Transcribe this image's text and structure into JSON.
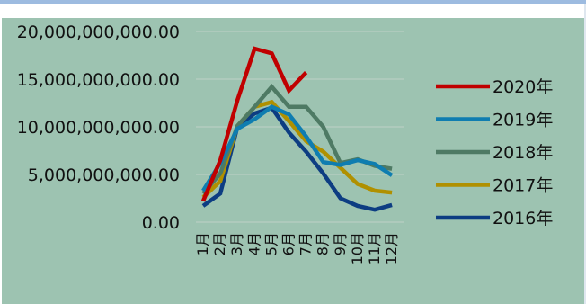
{
  "chart_data": {
    "type": "line",
    "categories": [
      "1月",
      "2月",
      "3月",
      "4月",
      "5月",
      "6月",
      "7月",
      "8月",
      "9月",
      "10月",
      "11月",
      "12月"
    ],
    "y_ticks": [
      "0.00",
      "5,000,000,000.00",
      "10,000,000,000.00",
      "15,000,000,000.00",
      "20,000,000,000.00"
    ],
    "ylim": [
      0,
      20000000000
    ],
    "grid": true,
    "legend_position": "right",
    "series": [
      {
        "name": "2020年",
        "color": "#c00000",
        "values": [
          2200000000,
          6500000000,
          12800000000,
          18200000000,
          17700000000,
          13800000000,
          15700000000,
          null,
          null,
          null,
          null,
          null
        ]
      },
      {
        "name": "2019年",
        "color": "#0f7db0",
        "values": [
          3300000000,
          6200000000,
          9800000000,
          10800000000,
          12100000000,
          11300000000,
          9000000000,
          6300000000,
          6000000000,
          6500000000,
          6100000000,
          4900000000
        ]
      },
      {
        "name": "2018年",
        "color": "#4e7a64",
        "values": [
          3000000000,
          5100000000,
          10100000000,
          12100000000,
          14200000000,
          12100000000,
          12100000000,
          10000000000,
          6200000000,
          6600000000,
          5900000000,
          5600000000
        ]
      },
      {
        "name": "2017年",
        "color": "#b09000",
        "values": [
          2600000000,
          4300000000,
          10100000000,
          12100000000,
          12600000000,
          10600000000,
          8500000000,
          7400000000,
          5700000000,
          4000000000,
          3300000000,
          3100000000
        ]
      },
      {
        "name": "2016年",
        "color": "#0d3d82",
        "values": [
          1700000000,
          3000000000,
          10000000000,
          11400000000,
          12000000000,
          9400000000,
          7400000000,
          5100000000,
          2500000000,
          1700000000,
          1300000000,
          1800000000
        ]
      }
    ]
  }
}
